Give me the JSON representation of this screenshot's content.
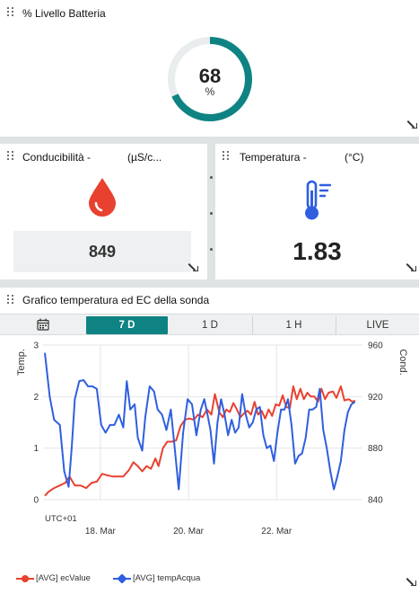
{
  "battery": {
    "title": "% Livello Batteria",
    "value": "68",
    "unit": "%",
    "level": 0.68,
    "color": "#0f8383"
  },
  "conductivity": {
    "title": "Conducibilità -",
    "unit": "(µS/c...",
    "value": "849",
    "icon": "water-drop-icon",
    "color": "#e8412f"
  },
  "temperature": {
    "title": "Temperatura -",
    "unit": "(°C)",
    "value": "1.83",
    "icon": "thermometer-icon",
    "color": "#2f5fe0"
  },
  "graph": {
    "title": "Grafico temperatura ed EC della sonda",
    "tabs": [
      "7 D",
      "1 D",
      "1 H",
      "LIVE"
    ],
    "active_tab": "7 D",
    "calendar_icon": "calendar-icon",
    "timezone": "UTC+01"
  },
  "chart_data": {
    "type": "line",
    "ylabel": "Temp.",
    "y2label": "Cond.",
    "ylim": [
      0,
      3
    ],
    "y2lim": [
      840,
      960
    ],
    "yticks": [
      "3",
      "2",
      "1",
      "0"
    ],
    "y2ticks": [
      "960",
      "920",
      "880",
      "840"
    ],
    "xticks": [
      {
        "label": "18. Mar",
        "x": 18
      },
      {
        "label": "20. Mar",
        "x": 20
      },
      {
        "label": "22. Mar",
        "x": 22
      }
    ],
    "xlim": [
      16.7,
      23.95
    ],
    "grid": true,
    "legend_position": "bottom-left",
    "series": [
      {
        "name": "[AVG] ecValue",
        "color": "#e8412f",
        "axis": "right",
        "points": [
          [
            16.74,
            843
          ],
          [
            16.82,
            846
          ],
          [
            16.95,
            849
          ],
          [
            17.08,
            851
          ],
          [
            17.2,
            853
          ],
          [
            17.3,
            858
          ],
          [
            17.42,
            851
          ],
          [
            17.55,
            851
          ],
          [
            17.68,
            849
          ],
          [
            17.8,
            853
          ],
          [
            17.92,
            854
          ],
          [
            18.04,
            860
          ],
          [
            18.15,
            859
          ],
          [
            18.28,
            858
          ],
          [
            18.4,
            858
          ],
          [
            18.52,
            858
          ],
          [
            18.65,
            863
          ],
          [
            18.75,
            869
          ],
          [
            18.85,
            866
          ],
          [
            18.95,
            862
          ],
          [
            19.05,
            866
          ],
          [
            19.15,
            864
          ],
          [
            19.25,
            872
          ],
          [
            19.32,
            866
          ],
          [
            19.42,
            880
          ],
          [
            19.52,
            885
          ],
          [
            19.62,
            885
          ],
          [
            19.72,
            886
          ],
          [
            19.82,
            897
          ],
          [
            19.92,
            902
          ],
          [
            20.02,
            903
          ],
          [
            20.12,
            902
          ],
          [
            20.22,
            906
          ],
          [
            20.32,
            904
          ],
          [
            20.42,
            910
          ],
          [
            20.52,
            906
          ],
          [
            20.6,
            922
          ],
          [
            20.7,
            908
          ],
          [
            20.78,
            904
          ],
          [
            20.86,
            910
          ],
          [
            20.94,
            908
          ],
          [
            21.02,
            915
          ],
          [
            21.1,
            910
          ],
          [
            21.18,
            904
          ],
          [
            21.26,
            907
          ],
          [
            21.34,
            909
          ],
          [
            21.42,
            906
          ],
          [
            21.5,
            916
          ],
          [
            21.58,
            906
          ],
          [
            21.66,
            909
          ],
          [
            21.74,
            903
          ],
          [
            21.82,
            910
          ],
          [
            21.9,
            905
          ],
          [
            21.98,
            914
          ],
          [
            22.06,
            913
          ],
          [
            22.14,
            921
          ],
          [
            22.22,
            912
          ],
          [
            22.3,
            911
          ],
          [
            22.38,
            928
          ],
          [
            22.46,
            918
          ],
          [
            22.54,
            926
          ],
          [
            22.62,
            918
          ],
          [
            22.7,
            923
          ],
          [
            22.78,
            920
          ],
          [
            22.86,
            920
          ],
          [
            22.94,
            916
          ],
          [
            23.02,
            926
          ],
          [
            23.1,
            918
          ],
          [
            23.18,
            923
          ],
          [
            23.28,
            924
          ],
          [
            23.36,
            919
          ],
          [
            23.46,
            928
          ],
          [
            23.54,
            917
          ],
          [
            23.64,
            918
          ],
          [
            23.72,
            916
          ],
          [
            23.78,
            917
          ]
        ]
      },
      {
        "name": "[AVG] tempAcqua",
        "color": "#2f5fe0",
        "axis": "left",
        "points": [
          [
            16.74,
            2.85
          ],
          [
            16.85,
            2.0
          ],
          [
            16.95,
            1.55
          ],
          [
            17.08,
            1.45
          ],
          [
            17.18,
            0.55
          ],
          [
            17.28,
            0.25
          ],
          [
            17.35,
            1.0
          ],
          [
            17.42,
            1.95
          ],
          [
            17.52,
            2.3
          ],
          [
            17.62,
            2.32
          ],
          [
            17.72,
            2.2
          ],
          [
            17.82,
            2.2
          ],
          [
            17.92,
            2.15
          ],
          [
            18.02,
            1.45
          ],
          [
            18.12,
            1.3
          ],
          [
            18.22,
            1.45
          ],
          [
            18.32,
            1.45
          ],
          [
            18.42,
            1.65
          ],
          [
            18.52,
            1.4
          ],
          [
            18.6,
            2.3
          ],
          [
            18.68,
            1.75
          ],
          [
            18.78,
            1.85
          ],
          [
            18.85,
            1.2
          ],
          [
            18.95,
            0.95
          ],
          [
            19.02,
            1.6
          ],
          [
            19.12,
            2.2
          ],
          [
            19.22,
            2.1
          ],
          [
            19.3,
            1.75
          ],
          [
            19.4,
            1.65
          ],
          [
            19.5,
            1.35
          ],
          [
            19.6,
            1.75
          ],
          [
            19.7,
            0.9
          ],
          [
            19.78,
            0.2
          ],
          [
            19.88,
            1.3
          ],
          [
            19.98,
            1.95
          ],
          [
            20.08,
            1.85
          ],
          [
            20.18,
            1.25
          ],
          [
            20.28,
            1.75
          ],
          [
            20.36,
            1.95
          ],
          [
            20.42,
            1.7
          ],
          [
            20.5,
            1.35
          ],
          [
            20.58,
            0.7
          ],
          [
            20.66,
            1.5
          ],
          [
            20.74,
            1.95
          ],
          [
            20.82,
            1.65
          ],
          [
            20.9,
            1.25
          ],
          [
            20.98,
            1.55
          ],
          [
            21.06,
            1.3
          ],
          [
            21.14,
            1.4
          ],
          [
            21.22,
            2.05
          ],
          [
            21.3,
            1.65
          ],
          [
            21.38,
            1.4
          ],
          [
            21.46,
            1.5
          ],
          [
            21.54,
            1.75
          ],
          [
            21.62,
            1.8
          ],
          [
            21.7,
            1.25
          ],
          [
            21.78,
            1.0
          ],
          [
            21.86,
            1.05
          ],
          [
            21.94,
            0.75
          ],
          [
            22.02,
            1.3
          ],
          [
            22.1,
            1.75
          ],
          [
            22.18,
            1.75
          ],
          [
            22.26,
            1.95
          ],
          [
            22.34,
            1.45
          ],
          [
            22.42,
            0.7
          ],
          [
            22.5,
            0.85
          ],
          [
            22.58,
            0.9
          ],
          [
            22.66,
            1.2
          ],
          [
            22.74,
            1.75
          ],
          [
            22.82,
            1.75
          ],
          [
            22.9,
            1.8
          ],
          [
            22.98,
            2.15
          ],
          [
            23.06,
            1.35
          ],
          [
            23.14,
            1.0
          ],
          [
            23.22,
            0.55
          ],
          [
            23.3,
            0.2
          ],
          [
            23.38,
            0.45
          ],
          [
            23.46,
            0.75
          ],
          [
            23.54,
            1.35
          ],
          [
            23.62,
            1.7
          ],
          [
            23.7,
            1.85
          ],
          [
            23.78,
            1.9
          ]
        ]
      }
    ]
  }
}
